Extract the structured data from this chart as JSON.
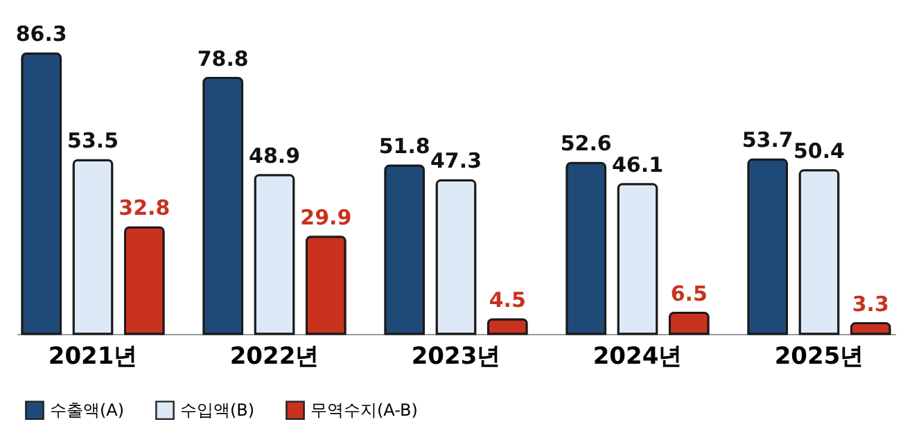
{
  "chart_data": {
    "type": "bar",
    "categories": [
      "2021년",
      "2022년",
      "2023년",
      "2024년",
      "2025년"
    ],
    "series": [
      {
        "name": "수출액(A)",
        "color": "#1f4a78",
        "values": [
          86.3,
          78.8,
          51.8,
          52.6,
          53.7
        ]
      },
      {
        "name": "수입액(B)",
        "color": "#dde9f6",
        "values": [
          53.5,
          48.9,
          47.3,
          46.1,
          50.4
        ]
      },
      {
        "name": "무역수지(A-B)",
        "color": "#c8321e",
        "values": [
          32.8,
          29.9,
          4.5,
          6.5,
          3.3
        ]
      }
    ],
    "data_labels": true,
    "tick_labels": "x",
    "grid": false,
    "legend": "bottom"
  }
}
